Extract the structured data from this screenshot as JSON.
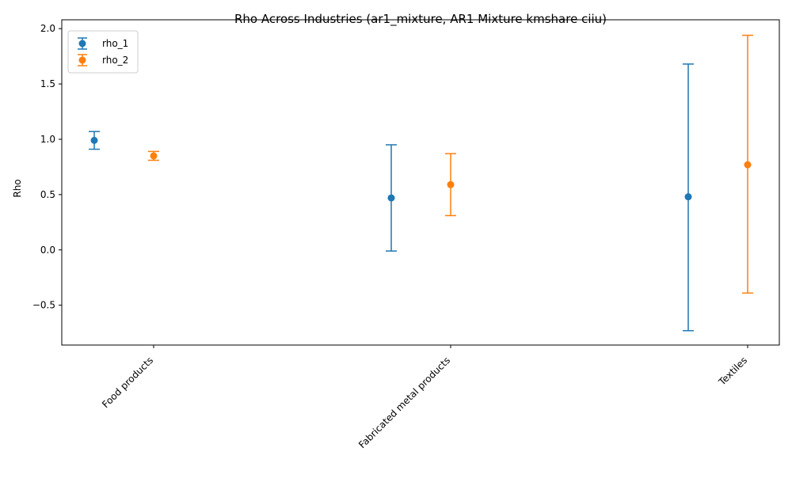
{
  "chart_data": {
    "type": "errorbar",
    "title": "Rho Across Industries (ar1_mixture, AR1 Mixture kmshare ciiu)",
    "xlabel": "",
    "ylabel": "Rho",
    "categories": [
      "Food products",
      "Fabricated metal products",
      "Textiles"
    ],
    "ylim": [
      -0.86,
      2.08
    ],
    "yticks": [
      -0.5,
      0.0,
      0.5,
      1.0,
      1.5,
      2.0
    ],
    "ytick_labels": [
      "−0.5",
      "0.0",
      "0.5",
      "1.0",
      "1.5",
      "2.0"
    ],
    "grid": false,
    "legend_position": "top-left",
    "series": [
      {
        "name": "rho_1",
        "color": "#1f77b4",
        "offset": -0.2,
        "values": [
          0.99,
          0.47,
          0.48
        ],
        "lower": [
          0.91,
          -0.01,
          -0.73
        ],
        "upper": [
          1.07,
          0.95,
          1.68
        ]
      },
      {
        "name": "rho_2",
        "color": "#ff7f0e",
        "offset": 0.0,
        "values": [
          0.85,
          0.59,
          0.77
        ],
        "lower": [
          0.81,
          0.31,
          -0.39
        ],
        "upper": [
          0.89,
          0.87,
          1.94
        ]
      }
    ]
  }
}
